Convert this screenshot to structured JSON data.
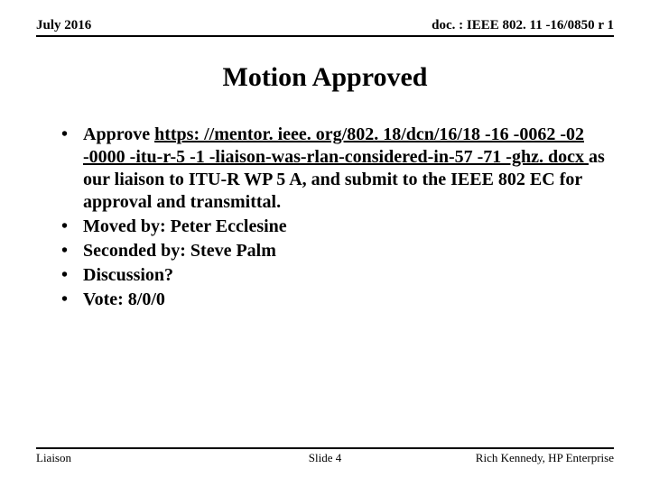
{
  "header": {
    "left": "July 2016",
    "right": "doc. : IEEE 802. 11 -16/0850 r 1"
  },
  "title": "Motion Approved",
  "bullets": [
    {
      "pre": "Approve ",
      "link": "https: //mentor. ieee. org/802. 18/dcn/16/18 -16 -0062 -02 -0000 -itu-r-5 -1 -liaison-was-rlan-considered-in-57 -71 -ghz. docx ",
      "post": "as our liaison to ITU-R WP 5 A, and submit to the IEEE 802 EC for approval and transmittal."
    },
    {
      "text": "Moved by: Peter Ecclesine"
    },
    {
      "text": "Seconded by: Steve Palm"
    },
    {
      "text": "Discussion?"
    },
    {
      "text": "Vote: 8/0/0"
    }
  ],
  "footer": {
    "left": "Liaison",
    "center": "Slide 4",
    "right": "Rich Kennedy, HP Enterprise"
  }
}
